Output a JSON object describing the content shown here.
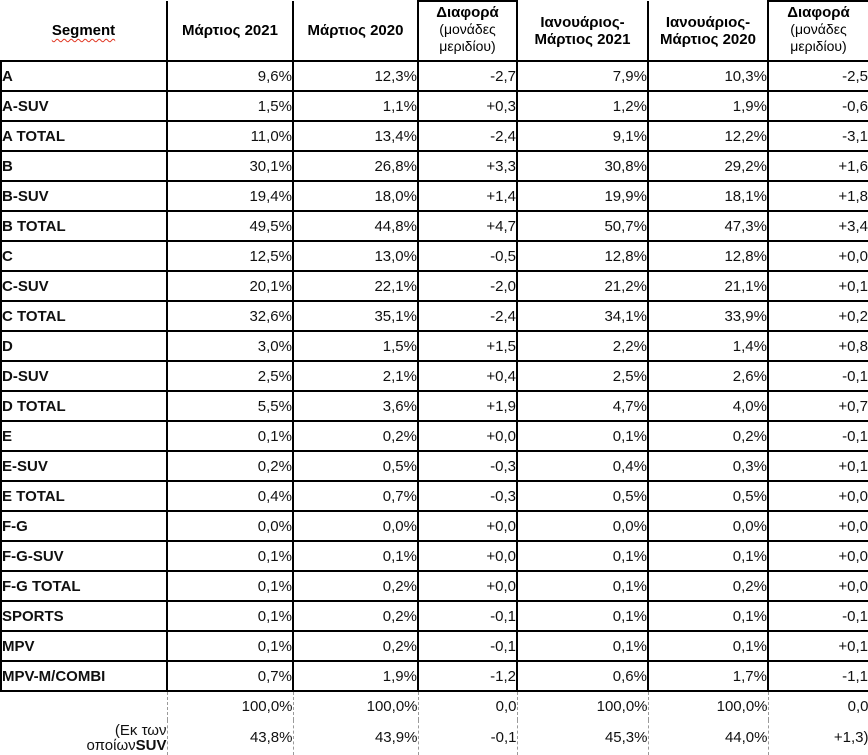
{
  "colors": {
    "grid_border": "#000000",
    "dashed_divider": "#9a9a9a",
    "spellcheck_underline": "#e0341f"
  },
  "table": {
    "columns": [
      {
        "label": "Segment"
      },
      {
        "label": "Μάρτιος 2021"
      },
      {
        "label": "Μάρτιος 2020"
      },
      {
        "label": "Διαφορά",
        "sub": "(μονάδες μεριδίου)"
      },
      {
        "label": "Ιανουάριος-Μάρτιος 2021"
      },
      {
        "label": "Ιανουάριος-Μάρτιος 2020"
      },
      {
        "label": "Διαφορά",
        "sub": "(μονάδες μεριδίου)"
      }
    ],
    "rows": [
      {
        "segment": "A",
        "values": [
          "9,6%",
          "12,3%",
          "-2,7",
          "7,9%",
          "10,3%",
          "-2,5"
        ]
      },
      {
        "segment": "A-SUV",
        "values": [
          "1,5%",
          "1,1%",
          "+0,3",
          "1,2%",
          "1,9%",
          "-0,6"
        ]
      },
      {
        "segment": "A TOTAL",
        "values": [
          "11,0%",
          "13,4%",
          "-2,4",
          "9,1%",
          "12,2%",
          "-3,1"
        ]
      },
      {
        "segment": "B",
        "values": [
          "30,1%",
          "26,8%",
          "+3,3",
          "30,8%",
          "29,2%",
          "+1,6"
        ]
      },
      {
        "segment": "B-SUV",
        "values": [
          "19,4%",
          "18,0%",
          "+1,4",
          "19,9%",
          "18,1%",
          "+1,8"
        ]
      },
      {
        "segment": "B TOTAL",
        "values": [
          "49,5%",
          "44,8%",
          "+4,7",
          "50,7%",
          "47,3%",
          "+3,4"
        ]
      },
      {
        "segment": "C",
        "values": [
          "12,5%",
          "13,0%",
          "-0,5",
          "12,8%",
          "12,8%",
          "+0,0"
        ]
      },
      {
        "segment": "C-SUV",
        "values": [
          "20,1%",
          "22,1%",
          "-2,0",
          "21,2%",
          "21,1%",
          "+0,1"
        ]
      },
      {
        "segment": "C TOTAL",
        "values": [
          "32,6%",
          "35,1%",
          "-2,4",
          "34,1%",
          "33,9%",
          "+0,2"
        ]
      },
      {
        "segment": "D",
        "values": [
          "3,0%",
          "1,5%",
          "+1,5",
          "2,2%",
          "1,4%",
          "+0,8"
        ]
      },
      {
        "segment": "D-SUV",
        "values": [
          "2,5%",
          "2,1%",
          "+0,4",
          "2,5%",
          "2,6%",
          "-0,1"
        ]
      },
      {
        "segment": "D TOTAL",
        "values": [
          "5,5%",
          "3,6%",
          "+1,9",
          "4,7%",
          "4,0%",
          "+0,7"
        ]
      },
      {
        "segment": "E",
        "values": [
          "0,1%",
          "0,2%",
          "+0,0",
          "0,1%",
          "0,2%",
          "-0,1"
        ]
      },
      {
        "segment": "E-SUV",
        "values": [
          "0,2%",
          "0,5%",
          "-0,3",
          "0,4%",
          "0,3%",
          "+0,1"
        ]
      },
      {
        "segment": "E TOTAL",
        "values": [
          "0,4%",
          "0,7%",
          "-0,3",
          "0,5%",
          "0,5%",
          "+0,0"
        ]
      },
      {
        "segment": "F-G",
        "values": [
          "0,0%",
          "0,0%",
          "+0,0",
          "0,0%",
          "0,0%",
          "+0,0"
        ]
      },
      {
        "segment": "F-G-SUV",
        "values": [
          "0,1%",
          "0,1%",
          "+0,0",
          "0,1%",
          "0,1%",
          "+0,0"
        ]
      },
      {
        "segment": "F-G TOTAL",
        "values": [
          "0,1%",
          "0,2%",
          "+0,0",
          "0,1%",
          "0,2%",
          "+0,0"
        ]
      },
      {
        "segment": "SPORTS",
        "values": [
          "0,1%",
          "0,2%",
          "-0,1",
          "0,1%",
          "0,1%",
          "-0,1"
        ]
      },
      {
        "segment": "MPV",
        "values": [
          "0,1%",
          "0,2%",
          "-0,1",
          "0,1%",
          "0,1%",
          "+0,1"
        ]
      },
      {
        "segment": "MPV-M/COMBI",
        "values": [
          "0,7%",
          "1,9%",
          "-1,2",
          "0,6%",
          "1,7%",
          "-1,1"
        ]
      }
    ],
    "footer": {
      "total": {
        "label": "",
        "values": [
          "100,0%",
          "100,0%",
          "0,0",
          "100,0%",
          "100,0%",
          "0,0"
        ]
      },
      "suv": {
        "label_line1": "(Εκ των",
        "label_line2": "οποίων",
        "label_line2_bold": "SUV",
        "values": [
          "43,8%",
          "43,9%",
          "-0,1",
          "45,3%",
          "44,0%",
          "+1,3)"
        ]
      }
    }
  }
}
